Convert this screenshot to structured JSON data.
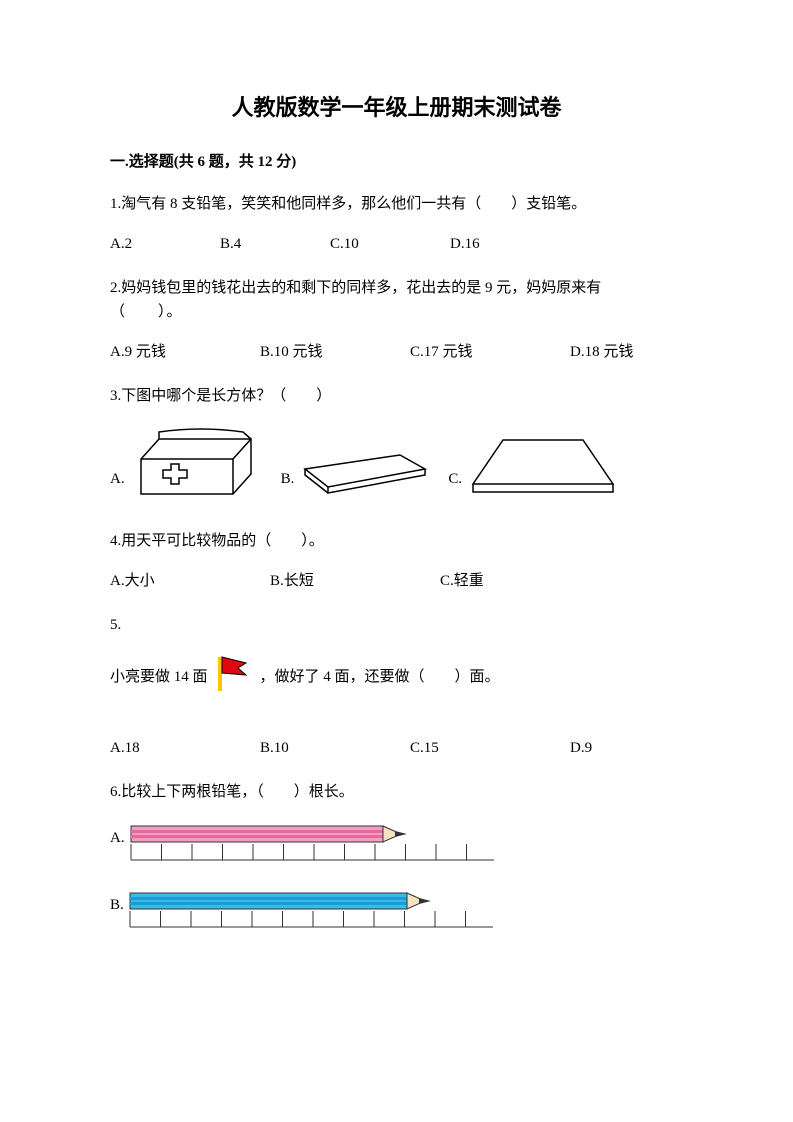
{
  "title": "人教版数学一年级上册期末测试卷",
  "section": {
    "label": "一.选择题(共 6 题，共 12 分)"
  },
  "q1": {
    "text": "1.淘气有 8 支铅笔，笑笑和他同样多，那么他们一共有（　　）支铅笔。",
    "options": {
      "a": "A.2",
      "b": "B.4",
      "c": "C.10",
      "d": "D.16"
    }
  },
  "q2": {
    "line1": "2.妈妈钱包里的钱花出去的和剩下的同样多，花出去的是 9 元，妈妈原来有",
    "line2": "（　　）。",
    "options": {
      "a": "A.9 元钱",
      "b": "B.10 元钱",
      "c": "C.17 元钱",
      "d": "D.18 元钱"
    }
  },
  "q3": {
    "text": "3.下图中哪个是长方体？（　　）",
    "labels": {
      "a": "A.",
      "b": "B.",
      "c": "C."
    },
    "stroke": "#000000",
    "fill": "#ffffff"
  },
  "q4": {
    "text": "4.用天平可比较物品的（　　）。",
    "options": {
      "a": "A.大小",
      "b": "B.长短",
      "c": "C.轻重"
    }
  },
  "q5": {
    "num": "5.",
    "pre": "小亮要做 14 面",
    "post": "，做好了 4 面，还要做（　　）面。",
    "options": {
      "a": "A.18",
      "b": "B.10",
      "c": "C.15",
      "d": "D.9"
    },
    "flag": {
      "fill": "#e20613",
      "stroke": "#000000",
      "pole_fill": "#f9c600"
    }
  },
  "q6": {
    "text": "6.比较上下两根铅笔，（　　）根长。",
    "labels": {
      "a": "A.",
      "b": "B."
    },
    "pencilA": {
      "body": "#f39ebf",
      "stripe": "#e16aa0",
      "tip_wood": "#f5e0c0",
      "tip": "#333333",
      "stroke": "#333333",
      "ruler": "#333333",
      "length": 280
    },
    "pencilB": {
      "body": "#3bb9e8",
      "stripe": "#1a9cd4",
      "tip_wood": "#f5e0c0",
      "tip": "#333333",
      "stroke": "#333333",
      "ruler": "#333333",
      "length": 305
    }
  }
}
